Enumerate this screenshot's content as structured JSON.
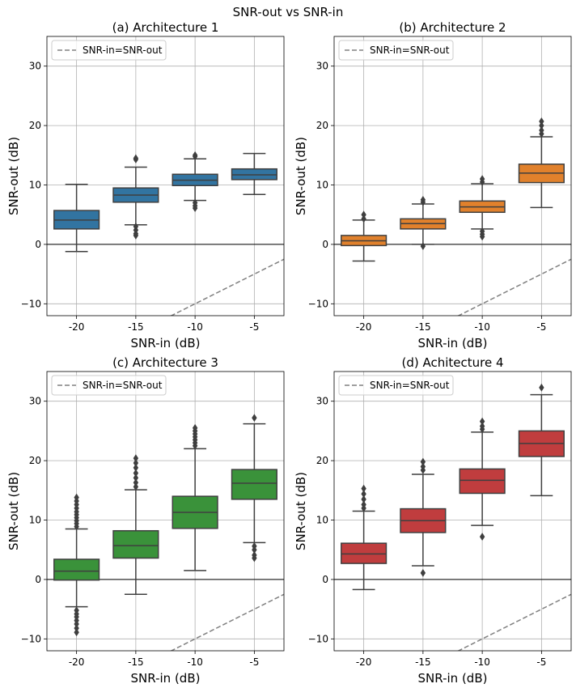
{
  "figure": {
    "suptitle": "SNR-out vs SNR-in"
  },
  "chart_data": [
    {
      "type": "box",
      "title": "(a) Architecture 1",
      "xlabel": "SNR-in (dB)",
      "ylabel": "SNR-out (dB)",
      "ylim": [
        -12,
        35
      ],
      "yticks": [
        -10,
        0,
        10,
        20,
        30
      ],
      "ytick_labels": [
        "−10",
        "0",
        "10",
        "20",
        "30"
      ],
      "categories": [
        "-20",
        "-15",
        "-10",
        "-5"
      ],
      "category_values": [
        -20,
        -15,
        -10,
        -5
      ],
      "color": "#3274a1",
      "legend": "SNR-in=SNR-out",
      "reference_line": "y = x",
      "boxes": [
        {
          "whislo": -1.2,
          "q1": 2.6,
          "med": 4.1,
          "q3": 5.7,
          "whishi": 10.1,
          "fliers": []
        },
        {
          "whislo": 3.3,
          "q1": 7.1,
          "med": 8.3,
          "q3": 9.5,
          "whishi": 13.0,
          "fliers": [
            14.3,
            14.5,
            3.0,
            2.4,
            1.8,
            1.5
          ]
        },
        {
          "whislo": 7.4,
          "q1": 9.9,
          "med": 10.8,
          "q3": 11.8,
          "whishi": 14.4,
          "fliers": [
            14.8,
            15.0,
            7.0,
            6.5,
            6.1
          ]
        },
        {
          "whislo": 8.4,
          "q1": 10.9,
          "med": 11.7,
          "q3": 12.7,
          "whishi": 15.3,
          "fliers": []
        }
      ]
    },
    {
      "type": "box",
      "title": "(b) Architecture 2",
      "xlabel": "SNR-in (dB)",
      "ylabel": "SNR-out (dB)",
      "ylim": [
        -12,
        35
      ],
      "yticks": [
        -10,
        0,
        10,
        20,
        30
      ],
      "ytick_labels": [
        "−10",
        "0",
        "10",
        "20",
        "30"
      ],
      "categories": [
        "-20",
        "-15",
        "-10",
        "-5"
      ],
      "category_values": [
        -20,
        -15,
        -10,
        -5
      ],
      "color": "#e1812c",
      "legend": "SNR-in=SNR-out",
      "reference_line": "y = x",
      "boxes": [
        {
          "whislo": -2.8,
          "q1": -0.2,
          "med": 0.6,
          "q3": 1.5,
          "whishi": 4.1,
          "fliers": [
            4.3,
            5.0
          ]
        },
        {
          "whislo": 0.0,
          "q1": 2.6,
          "med": 3.5,
          "q3": 4.3,
          "whishi": 6.8,
          "fliers": [
            7.1,
            7.5,
            -0.3
          ]
        },
        {
          "whislo": 2.6,
          "q1": 5.4,
          "med": 6.3,
          "q3": 7.3,
          "whishi": 10.2,
          "fliers": [
            10.5,
            11.0,
            2.2,
            1.7,
            1.3
          ]
        },
        {
          "whislo": 6.2,
          "q1": 10.4,
          "med": 12.0,
          "q3": 13.5,
          "whishi": 18.1,
          "fliers": [
            18.6,
            19.2,
            20.0,
            20.7
          ]
        }
      ]
    },
    {
      "type": "box",
      "title": "(c) Architecture 3",
      "xlabel": "SNR-in (dB)",
      "ylabel": "SNR-out (dB)",
      "ylim": [
        -12,
        35
      ],
      "yticks": [
        -10,
        0,
        10,
        20,
        30
      ],
      "ytick_labels": [
        "−10",
        "0",
        "10",
        "20",
        "30"
      ],
      "categories": [
        "-20",
        "-15",
        "-10",
        "-5"
      ],
      "category_values": [
        -20,
        -15,
        -10,
        -5
      ],
      "color": "#3a923a",
      "legend": "SNR-in=SNR-out",
      "reference_line": "y = x",
      "boxes": [
        {
          "whislo": -4.6,
          "q1": -0.1,
          "med": 1.4,
          "q3": 3.4,
          "whishi": 8.5,
          "fliers": [
            8.9,
            9.4,
            9.9,
            10.4,
            10.9,
            11.4,
            12.0,
            12.6,
            13.2,
            13.8,
            -5.2,
            -5.8,
            -6.3,
            -6.9,
            -7.5,
            -8.2,
            -8.9
          ]
        },
        {
          "whislo": -2.5,
          "q1": 3.6,
          "med": 5.7,
          "q3": 8.2,
          "whishi": 15.1,
          "fliers": [
            15.6,
            16.3,
            17.1,
            17.9,
            18.8,
            19.6,
            20.4
          ]
        },
        {
          "whislo": 1.5,
          "q1": 8.6,
          "med": 11.3,
          "q3": 14.0,
          "whishi": 22.0,
          "fliers": [
            22.5,
            23.0,
            23.5,
            24.0,
            24.5,
            25.0,
            25.5
          ]
        },
        {
          "whislo": 6.2,
          "q1": 13.5,
          "med": 16.2,
          "q3": 18.5,
          "whishi": 26.2,
          "fliers": [
            27.2,
            5.6,
            5.0,
            4.1,
            3.6
          ]
        }
      ]
    },
    {
      "type": "box",
      "title": "(d) Achitecture 4",
      "xlabel": "SNR-in (dB)",
      "ylabel": "SNR-out (dB)",
      "ylim": [
        -12,
        35
      ],
      "yticks": [
        -10,
        0,
        10,
        20,
        30
      ],
      "ytick_labels": [
        "−10",
        "0",
        "10",
        "20",
        "30"
      ],
      "categories": [
        "-20",
        "-15",
        "-10",
        "-5"
      ],
      "category_values": [
        -20,
        -15,
        -10,
        -5
      ],
      "color": "#c03d3e",
      "legend": "SNR-in=SNR-out",
      "reference_line": "y = x",
      "boxes": [
        {
          "whislo": -1.7,
          "q1": 2.7,
          "med": 4.3,
          "q3": 6.1,
          "whishi": 11.5,
          "fliers": [
            12.0,
            12.6,
            13.5,
            14.4,
            15.3
          ]
        },
        {
          "whislo": 2.3,
          "q1": 7.9,
          "med": 9.9,
          "q3": 11.9,
          "whishi": 17.7,
          "fliers": [
            18.4,
            19.0,
            19.8,
            1.1
          ]
        },
        {
          "whislo": 9.1,
          "q1": 14.5,
          "med": 16.7,
          "q3": 18.6,
          "whishi": 24.8,
          "fliers": [
            25.3,
            25.8,
            26.6,
            7.2
          ]
        },
        {
          "whislo": 14.1,
          "q1": 20.7,
          "med": 22.9,
          "q3": 25.0,
          "whishi": 31.1,
          "fliers": [
            32.3
          ]
        }
      ]
    }
  ]
}
